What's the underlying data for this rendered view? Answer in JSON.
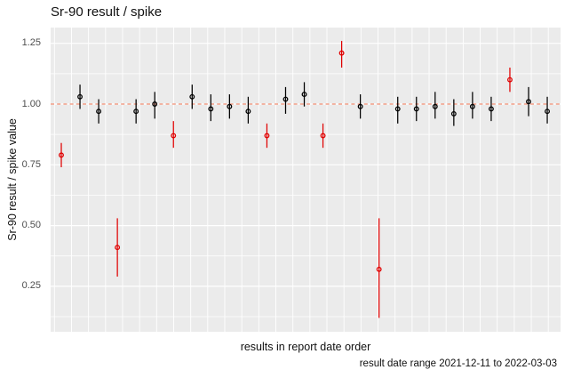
{
  "colors": {
    "page_bg": "#FFFFFF",
    "panel_bg": "#EBEBEB",
    "grid": "#FFFFFF",
    "ok_point": "#000000",
    "flagged_point": "#E00000",
    "reference_line": "#F28E74",
    "tick_text": "#4D4D4D",
    "text": "#000000"
  },
  "chart_data": {
    "type": "scatter",
    "title": "Sr-90 result / spike",
    "xlabel": "results in report date order",
    "ylabel": "Sr-90 result / spike value",
    "caption": "result date range 2021-12-11 to 2022-03-03",
    "legend": "none",
    "grid": "on",
    "x_tick_labels": "none",
    "yticks": [
      0.25,
      0.5,
      0.75,
      1.0,
      1.25
    ],
    "ylim": [
      0.06,
      1.31
    ],
    "reference_line": {
      "y": 1.0,
      "style": "dashed"
    },
    "points_note": "27 results in report date order; vertical segments are uncertainty ranges; flagged points drawn red",
    "points": [
      {
        "i": 1,
        "y": 0.79,
        "lo": 0.74,
        "hi": 0.84,
        "flag": true
      },
      {
        "i": 2,
        "y": 1.03,
        "lo": 0.98,
        "hi": 1.08,
        "flag": false
      },
      {
        "i": 3,
        "y": 0.97,
        "lo": 0.92,
        "hi": 1.02,
        "flag": false
      },
      {
        "i": 4,
        "y": 0.41,
        "lo": 0.29,
        "hi": 0.53,
        "flag": true
      },
      {
        "i": 5,
        "y": 0.97,
        "lo": 0.92,
        "hi": 1.02,
        "flag": false
      },
      {
        "i": 6,
        "y": 1.0,
        "lo": 0.94,
        "hi": 1.05,
        "flag": false
      },
      {
        "i": 7,
        "y": 0.87,
        "lo": 0.82,
        "hi": 0.93,
        "flag": true
      },
      {
        "i": 8,
        "y": 1.03,
        "lo": 0.98,
        "hi": 1.08,
        "flag": false
      },
      {
        "i": 9,
        "y": 0.98,
        "lo": 0.93,
        "hi": 1.04,
        "flag": false
      },
      {
        "i": 10,
        "y": 0.99,
        "lo": 0.94,
        "hi": 1.04,
        "flag": false
      },
      {
        "i": 11,
        "y": 0.97,
        "lo": 0.92,
        "hi": 1.03,
        "flag": false
      },
      {
        "i": 12,
        "y": 0.87,
        "lo": 0.82,
        "hi": 0.92,
        "flag": true
      },
      {
        "i": 13,
        "y": 1.02,
        "lo": 0.96,
        "hi": 1.07,
        "flag": false
      },
      {
        "i": 14,
        "y": 1.04,
        "lo": 0.99,
        "hi": 1.09,
        "flag": false
      },
      {
        "i": 15,
        "y": 0.87,
        "lo": 0.82,
        "hi": 0.92,
        "flag": true
      },
      {
        "i": 16,
        "y": 1.21,
        "lo": 1.15,
        "hi": 1.26,
        "flag": true
      },
      {
        "i": 17,
        "y": 0.99,
        "lo": 0.94,
        "hi": 1.04,
        "flag": false
      },
      {
        "i": 18,
        "y": 0.32,
        "lo": 0.12,
        "hi": 0.53,
        "flag": true
      },
      {
        "i": 19,
        "y": 0.98,
        "lo": 0.92,
        "hi": 1.03,
        "flag": false
      },
      {
        "i": 20,
        "y": 0.98,
        "lo": 0.93,
        "hi": 1.03,
        "flag": false
      },
      {
        "i": 21,
        "y": 0.99,
        "lo": 0.94,
        "hi": 1.05,
        "flag": false
      },
      {
        "i": 22,
        "y": 0.96,
        "lo": 0.91,
        "hi": 1.02,
        "flag": false
      },
      {
        "i": 23,
        "y": 0.99,
        "lo": 0.94,
        "hi": 1.05,
        "flag": false
      },
      {
        "i": 24,
        "y": 0.98,
        "lo": 0.93,
        "hi": 1.03,
        "flag": false
      },
      {
        "i": 25,
        "y": 1.1,
        "lo": 1.05,
        "hi": 1.15,
        "flag": true
      },
      {
        "i": 26,
        "y": 1.01,
        "lo": 0.95,
        "hi": 1.07,
        "flag": false
      },
      {
        "i": 27,
        "y": 0.97,
        "lo": 0.92,
        "hi": 1.03,
        "flag": false
      }
    ]
  }
}
